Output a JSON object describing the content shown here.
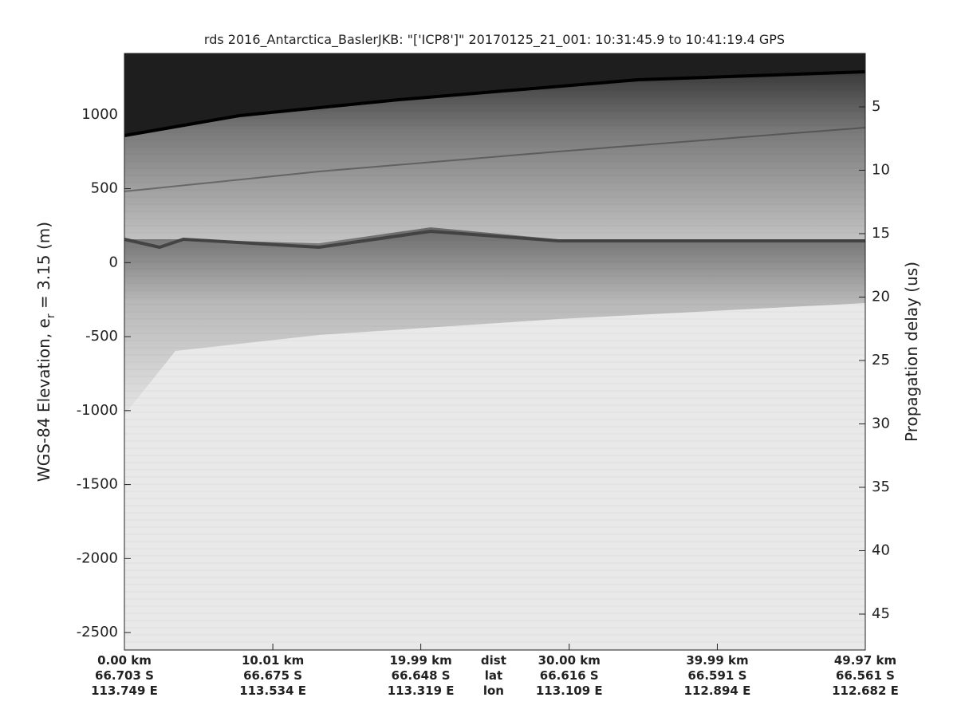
{
  "chart_data": {
    "type": "echogram",
    "title": "rds 2016_Antarctica_BaslerJKB: \"['ICP8']\"  20170125_21_001: 10:31:45.9 to 10:41:19.4 GPS",
    "ylabel": {
      "main": "WGS-84 Elevation, e",
      "sub": "r",
      "rest": " = 3.15 (m)"
    },
    "y2label": "Propagation delay (us)",
    "ylim": [
      -2618,
      1414
    ],
    "yticks": [
      1000,
      500,
      0,
      -500,
      -1000,
      -1500,
      -2000,
      -2500
    ],
    "y2lim": [
      47.83,
      0.79
    ],
    "y2ticks": [
      5,
      10,
      15,
      20,
      25,
      30,
      35,
      40,
      45
    ],
    "xlim": [
      0,
      49.97
    ],
    "xticks": [
      {
        "value": 0,
        "label": "0.00 km",
        "lat": "66.703 S",
        "lon": "113.749 E"
      },
      {
        "value": 10.01,
        "label": "10.01 km",
        "lat": "66.675 S",
        "lon": "113.534 E"
      },
      {
        "value": 19.99,
        "label": "19.99 km",
        "lat": "66.648 S",
        "lon": "113.319 E"
      },
      {
        "value": 30.0,
        "label": "30.00 km",
        "lat": "66.616 S",
        "lon": "113.109 E"
      },
      {
        "value": 39.99,
        "label": "39.99 km",
        "lat": "66.591 S",
        "lon": "112.894 E"
      },
      {
        "value": 49.97,
        "label": "49.97 km",
        "lat": "66.561 S",
        "lon": "112.682 E"
      }
    ],
    "x_row_labels": {
      "value": 24.9,
      "rows": [
        "dist",
        "lat",
        "lon"
      ]
    }
  }
}
